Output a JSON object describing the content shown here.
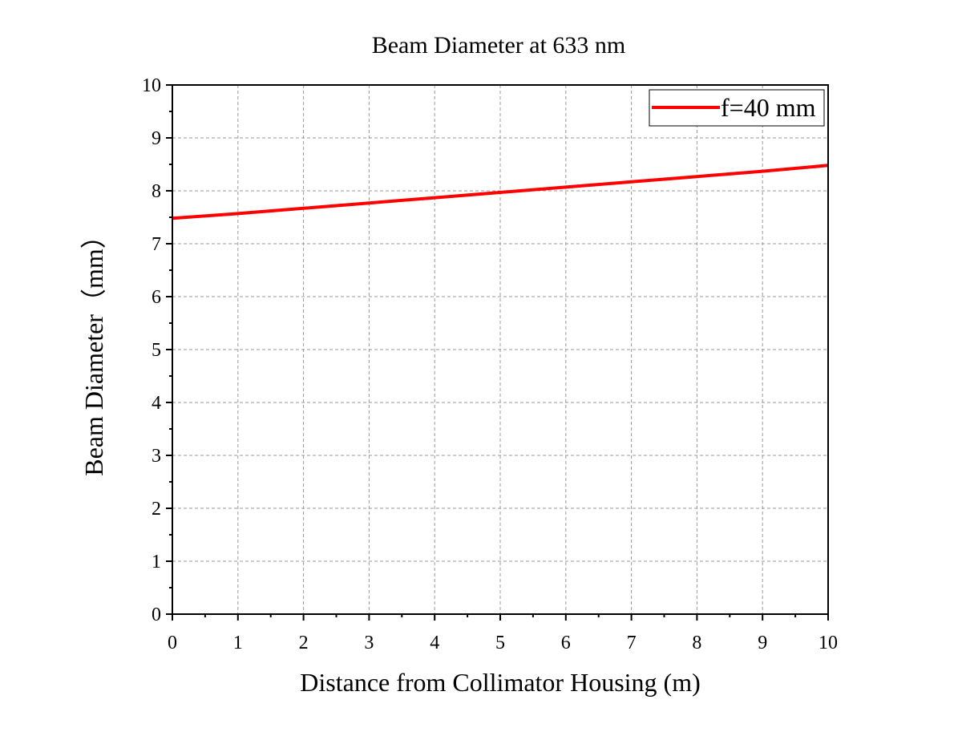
{
  "chart_data": {
    "type": "line",
    "title": "Beam Diameter at 633 nm",
    "xlabel": "Distance from Collimator Housing (m)",
    "ylabel": "Beam Diameter（mm）",
    "xlim": [
      0,
      10
    ],
    "ylim": [
      0,
      10
    ],
    "x_ticks": [
      "0",
      "1",
      "2",
      "3",
      "4",
      "5",
      "6",
      "7",
      "8",
      "9",
      "10"
    ],
    "y_ticks": [
      "0",
      "1",
      "2",
      "3",
      "4",
      "5",
      "6",
      "7",
      "8",
      "9",
      "10"
    ],
    "grid": true,
    "legend_position": "top-right",
    "series": [
      {
        "name": "f=40 mm",
        "color": "#ff0000",
        "x": [
          0,
          1,
          2,
          3,
          4,
          5,
          6,
          7,
          8,
          9,
          10
        ],
        "y": [
          7.48,
          7.57,
          7.67,
          7.77,
          7.87,
          7.97,
          8.07,
          8.17,
          8.27,
          8.37,
          8.48
        ]
      }
    ]
  }
}
